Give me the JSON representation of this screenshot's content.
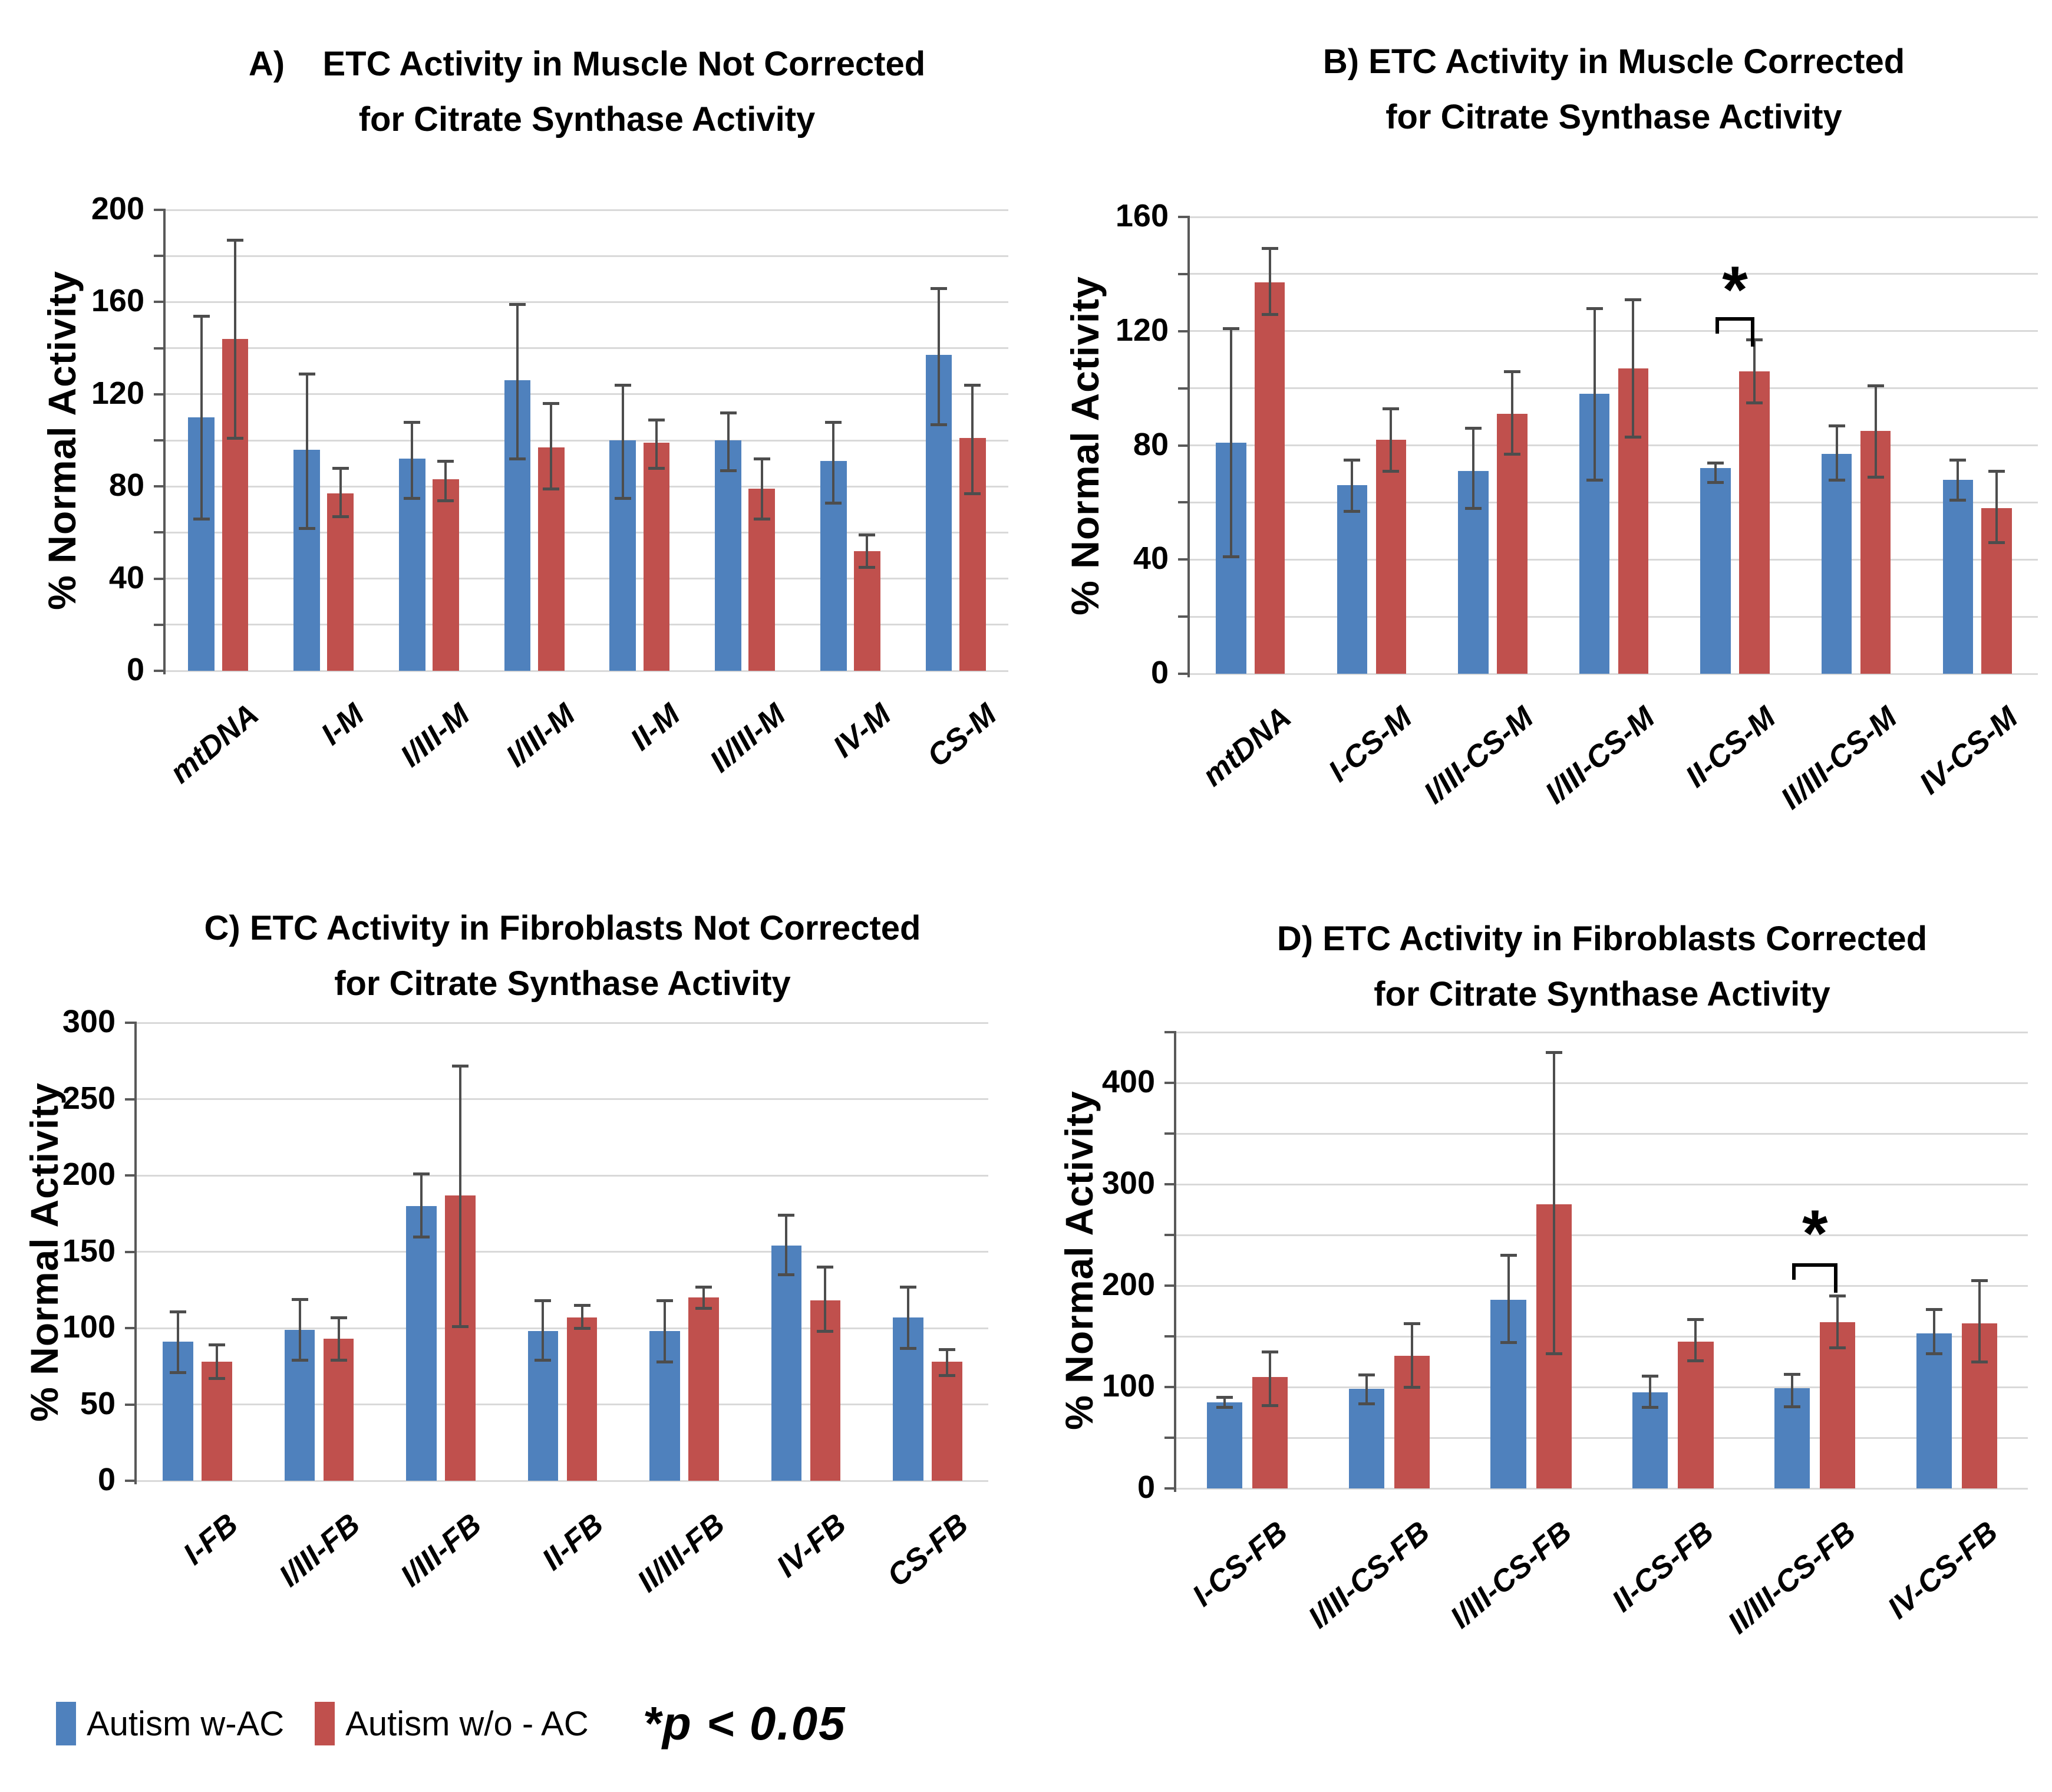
{
  "colors": {
    "series1": "#4F81BD",
    "series2": "#C0504D",
    "error": "#4d4d4d",
    "grid": "#D9D9D9",
    "axis": "#595959"
  },
  "legend": {
    "items": [
      {
        "label": "Autism w-AC",
        "color": "#4F81BD"
      },
      {
        "label": "Autism w/o - AC",
        "color": "#C0504D"
      }
    ],
    "note": "*p < 0.05"
  },
  "chart_data": [
    {
      "id": "A",
      "type": "bar",
      "title_line1": "A)    ETC Activity in Muscle Not Corrected",
      "title_line2": "for Citrate Synthase Activity",
      "ylabel": "% Normal Activity",
      "ylim": [
        0,
        200
      ],
      "grid_step": 20,
      "label_step": 40,
      "grid": true,
      "legend_position": "none",
      "categories": [
        "mtDNA",
        "I-M",
        "I/III-M",
        "I/III-M",
        "II-M",
        "II/III-M",
        "IV-M",
        "CS-M"
      ],
      "series": [
        {
          "name": "Autism w-AC",
          "values": [
            110,
            96,
            92,
            126,
            100,
            100,
            91,
            137
          ],
          "err_low": [
            66,
            62,
            75,
            92,
            75,
            87,
            73,
            107
          ],
          "err_high": [
            154,
            129,
            108,
            159,
            124,
            112,
            108,
            166
          ]
        },
        {
          "name": "Autism w/o - AC",
          "values": [
            144,
            77,
            83,
            97,
            99,
            79,
            52,
            101
          ],
          "err_low": [
            101,
            67,
            74,
            79,
            88,
            66,
            45,
            77
          ],
          "err_high": [
            187,
            88,
            91,
            116,
            109,
            92,
            59,
            124
          ]
        }
      ],
      "significance": null
    },
    {
      "id": "B",
      "type": "bar",
      "title_line1": "B) ETC Activity in Muscle Corrected",
      "title_line2": "for Citrate Synthase Activity",
      "ylabel": "% Normal Activity",
      "ylim": [
        0,
        160
      ],
      "grid_step": 20,
      "label_step": 40,
      "grid": true,
      "legend_position": "none",
      "categories": [
        "mtDNA",
        "I-CS-M",
        "I/III-CS-M",
        "I/III-CS-M",
        "II-CS-M",
        "II/III-CS-M",
        "IV-CS-M"
      ],
      "series": [
        {
          "name": "Autism w-AC",
          "values": [
            81,
            66,
            71,
            98,
            72,
            77,
            68
          ],
          "err_low": [
            41,
            57,
            58,
            68,
            67,
            68,
            61
          ],
          "err_high": [
            121,
            75,
            86,
            128,
            74,
            87,
            75
          ]
        },
        {
          "name": "Autism w/o - AC",
          "values": [
            137,
            82,
            91,
            107,
            106,
            85,
            58
          ],
          "err_low": [
            126,
            71,
            77,
            83,
            95,
            69,
            46
          ],
          "err_high": [
            149,
            93,
            106,
            131,
            117,
            101,
            71
          ]
        }
      ],
      "significance": {
        "category_index": 4,
        "bracket_y": 125,
        "star_y": 134,
        "symbol": "*"
      }
    },
    {
      "id": "C",
      "type": "bar",
      "title_line1": "C) ETC Activity in Fibroblasts Not Corrected",
      "title_line2": "for Citrate Synthase Activity",
      "ylabel": "% Normal Activity",
      "ylim": [
        0,
        300
      ],
      "grid_step": 50,
      "label_step": 50,
      "grid": true,
      "legend_position": "none",
      "categories": [
        "I-FB",
        "I/III-FB",
        "I/III-FB",
        "II-FB",
        "II/III-FB",
        "IV-FB",
        "CS-FB"
      ],
      "series": [
        {
          "name": "Autism w-AC",
          "values": [
            91,
            99,
            180,
            98,
            98,
            154,
            107
          ],
          "err_low": [
            71,
            79,
            160,
            79,
            78,
            135,
            87
          ],
          "err_high": [
            111,
            119,
            201,
            118,
            118,
            174,
            127
          ]
        },
        {
          "name": "Autism w/o - AC",
          "values": [
            78,
            93,
            187,
            107,
            120,
            118,
            78
          ],
          "err_low": [
            67,
            79,
            101,
            100,
            113,
            98,
            69
          ],
          "err_high": [
            89,
            107,
            272,
            115,
            127,
            140,
            86
          ]
        }
      ],
      "significance": null
    },
    {
      "id": "D",
      "type": "bar",
      "title_line1": "D) ETC Activity in Fibroblasts Corrected",
      "title_line2": "for Citrate Synthase Activity",
      "ylabel": "% Normal Activity",
      "ylim": [
        0,
        450
      ],
      "grid_step": 50,
      "label_step": 100,
      "grid": true,
      "legend_position": "none",
      "categories": [
        "I-CS-FB",
        "I/III-CS-FB",
        "I/III-CS-FB",
        "II-CS-FB",
        "II/III-CS-FB",
        "IV-CS-FB"
      ],
      "series": [
        {
          "name": "Autism w-AC",
          "values": [
            85,
            98,
            186,
            95,
            99,
            153
          ],
          "err_low": [
            80,
            84,
            144,
            80,
            81,
            133
          ],
          "err_high": [
            90,
            112,
            230,
            111,
            113,
            177
          ]
        },
        {
          "name": "Autism w/o - AC",
          "values": [
            110,
            131,
            280,
            145,
            164,
            163
          ],
          "err_low": [
            82,
            100,
            133,
            126,
            139,
            125
          ],
          "err_high": [
            135,
            163,
            430,
            167,
            190,
            205
          ]
        }
      ],
      "significance": {
        "category_index": 4,
        "bracket_y": 222,
        "star_y": 250,
        "symbol": "*"
      }
    }
  ]
}
